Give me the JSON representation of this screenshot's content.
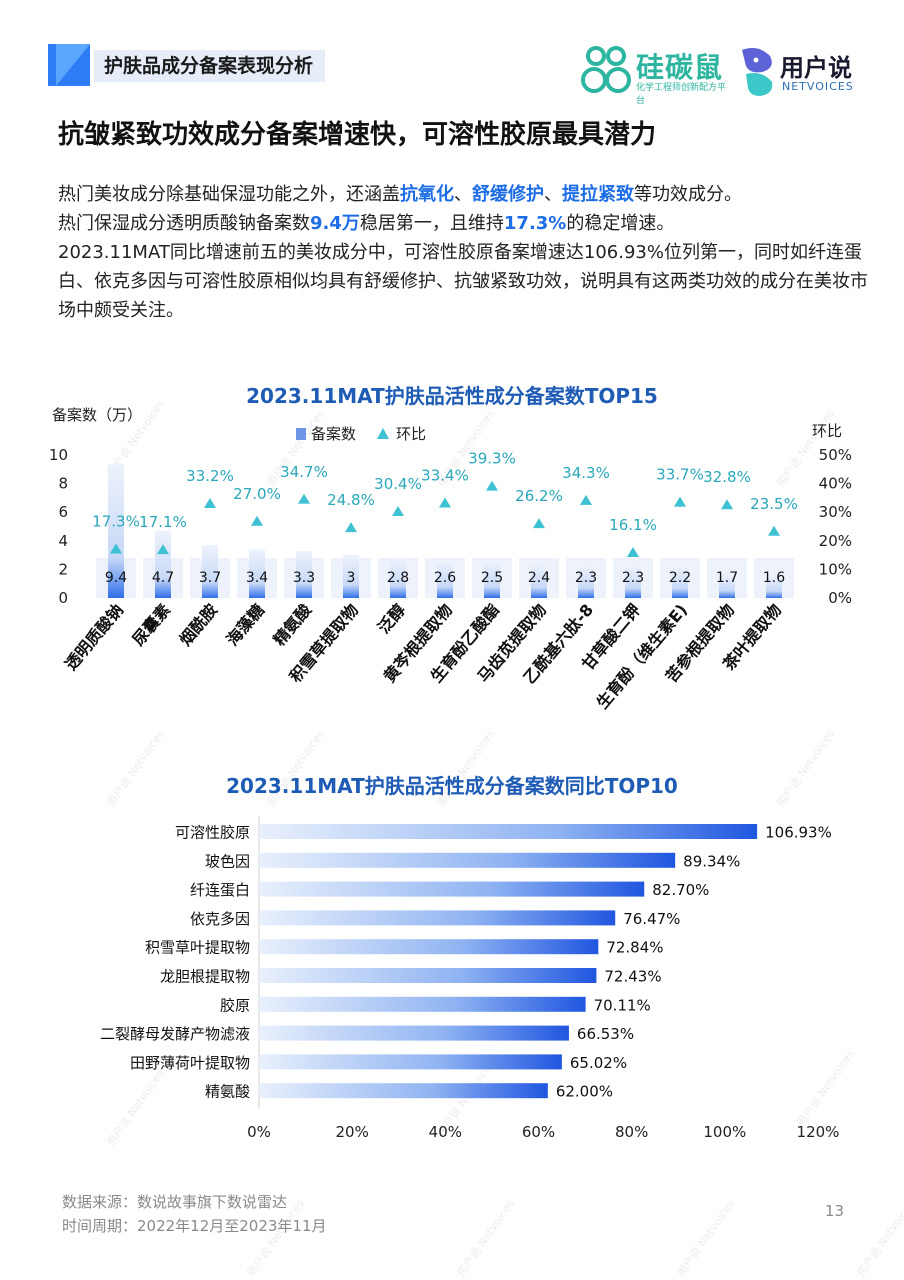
{
  "header": {
    "section_label": "护肤品成分备案表现分析"
  },
  "logos": {
    "logo1_name": "硅碳鼠",
    "logo1_sub": "化学工程师创新配方平台",
    "logo2_name": "用户说",
    "logo2_sub": "NETVOICES"
  },
  "title": "抗皱紧致功效成分备案增速快，可溶性胶原最具潜力",
  "paragraph": {
    "p1a": "热门美妆成分除基础保湿功能之外，还涵盖",
    "p1b": "抗氧化",
    "p1c": "、",
    "p1d": "舒缓修护",
    "p1e": "、",
    "p1f": "提拉紧致",
    "p1g": "等功效成分。",
    "p2a": "热门保湿成分透明质酸钠备案数",
    "p2b": "9.4万",
    "p2c": "稳居第一，且维持",
    "p2d": "17.3%",
    "p2e": "的稳定增速。",
    "p3": "2023.11MAT同比增速前五的美妆成分中，可溶性胶原备案增速达106.93%位列第一，同时如纤连蛋白、依克多因与可溶性胶原相似均具有舒缓修护、抗皱紧致功效，说明具有这两类功效的成分在美妆市场中颇受关注。"
  },
  "watermark": "用户说 Netvoices",
  "colors": {
    "accent": "#1e5bb5",
    "bar_dark": "#2f6ee8",
    "bar_light": "#c9dbfb",
    "marker": "#3dc1d3"
  },
  "chart_data": [
    {
      "type": "bar",
      "title": "2023.11MAT护肤品活性成分备案数TOP15",
      "ylabel": "备案数（万）",
      "y2label": "环比",
      "legend": [
        "备案数",
        "环比"
      ],
      "legend_placement": "top",
      "ylim": [
        0,
        10
      ],
      "yticks": [
        "0",
        "2",
        "4",
        "6",
        "8",
        "10"
      ],
      "y2lim": [
        0,
        50
      ],
      "y2ticks": [
        "0%",
        "10%",
        "20%",
        "30%",
        "40%",
        "50%"
      ],
      "categories": [
        "透明质酸钠",
        "尿囊素",
        "烟酰胺",
        "海藻糖",
        "精氨酸",
        "积雪草提取物",
        "泛醇",
        "黄芩根提取物",
        "生育酚乙酸酯",
        "马齿苋提取物",
        "乙酰基六肽-8",
        "甘草酸二钾",
        "生育酚（维生素E)",
        "苦参根提取物",
        "茶叶提取物"
      ],
      "series": [
        {
          "name": "备案数",
          "values": [
            9.4,
            4.7,
            3.7,
            3.4,
            3.3,
            3,
            2.8,
            2.6,
            2.5,
            2.4,
            2.3,
            2.3,
            2.2,
            1.7,
            1.6
          ],
          "labels": [
            "9.4",
            "4.7",
            "3.7",
            "3.4",
            "3.3",
            "3",
            "2.8",
            "2.6",
            "2.5",
            "2.4",
            "2.3",
            "2.3",
            "2.2",
            "1.7",
            "1.6"
          ]
        },
        {
          "name": "环比",
          "values": [
            17.3,
            17.1,
            33.2,
            27.0,
            34.7,
            24.8,
            30.4,
            33.4,
            39.3,
            26.2,
            34.3,
            16.1,
            33.7,
            32.8,
            23.5
          ],
          "labels": [
            "17.3%",
            "17.1%",
            "33.2%",
            "27.0%",
            "34.7%",
            "24.8%",
            "30.4%",
            "33.4%",
            "39.3%",
            "26.2%",
            "34.3%",
            "16.1%",
            "33.7%",
            "32.8%",
            "23.5%"
          ]
        }
      ]
    },
    {
      "type": "bar",
      "orientation": "horizontal",
      "title": "2023.11MAT护肤品活性成分备案数同比TOP10",
      "xlim": [
        0,
        120
      ],
      "xticks": [
        "0%",
        "20%",
        "40%",
        "60%",
        "80%",
        "100%",
        "120%"
      ],
      "categories": [
        "可溶性胶原",
        "玻色因",
        "纤连蛋白",
        "依克多因",
        "积雪草叶提取物",
        "龙胆根提取物",
        "胶原",
        "二裂酵母发酵产物滤液",
        "田野薄荷叶提取物",
        "精氨酸"
      ],
      "values": [
        106.93,
        89.34,
        82.7,
        76.47,
        72.84,
        72.43,
        70.11,
        66.53,
        65.02,
        62.0
      ],
      "labels": [
        "106.93%",
        "89.34%",
        "82.70%",
        "76.47%",
        "72.84%",
        "72.43%",
        "70.11%",
        "66.53%",
        "65.02%",
        "62.00%"
      ]
    }
  ],
  "footer": {
    "source": "数据来源：数说故事旗下数说雷达",
    "period": "时间周期：2022年12月至2023年11月",
    "page": "13"
  }
}
